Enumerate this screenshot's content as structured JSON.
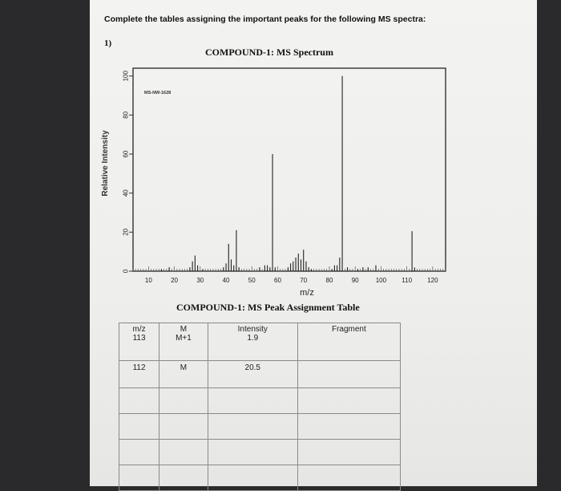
{
  "page": {
    "instruction": "Complete the tables assigning the important peaks for the following MS spectra:",
    "question_number": "1)",
    "spectrum_title": "COMPOUND-1: MS Spectrum",
    "table_title": "COMPOUND-1: MS Peak Assignment Table"
  },
  "chart_data": {
    "type": "bar",
    "title": "COMPOUND-1: MS Spectrum",
    "inner_label": "MS-NW-1628",
    "xlabel": "m/z",
    "ylabel": "Relative Intensity",
    "xlim": [
      4,
      125
    ],
    "ylim": [
      0,
      104
    ],
    "xticks": [
      10,
      20,
      30,
      40,
      50,
      60,
      70,
      80,
      90,
      100,
      110,
      120
    ],
    "yticks": [
      0,
      20,
      40,
      60,
      80,
      100
    ],
    "grid": false,
    "x": [
      15,
      18,
      26,
      27,
      28,
      29,
      31,
      39,
      40,
      41,
      42,
      43,
      44,
      45,
      53,
      55,
      56,
      57,
      58,
      59,
      64,
      65,
      66,
      67,
      68,
      69,
      70,
      71,
      72,
      73,
      81,
      82,
      83,
      84,
      85,
      87,
      91,
      93,
      95,
      98,
      112,
      113
    ],
    "values": [
      1,
      2,
      2,
      5,
      8,
      3,
      1,
      2,
      4,
      14,
      6,
      3,
      21,
      2,
      2,
      3,
      3,
      2,
      60,
      2,
      2,
      4,
      5,
      7,
      9,
      6,
      11,
      5,
      2,
      1,
      1,
      3,
      3,
      7,
      100,
      2,
      1,
      2,
      2,
      3,
      20.5,
      1.9
    ]
  },
  "table": {
    "headers": [
      {
        "line1": "m/z",
        "line2": "113"
      },
      {
        "line1": "M",
        "line2": "M+1"
      },
      {
        "line1": "Intensity",
        "line2": "1.9"
      },
      {
        "line1": "Fragment",
        "line2": ""
      }
    ],
    "rows": [
      [
        "112",
        "M",
        "20.5",
        ""
      ],
      [
        "",
        "",
        "",
        ""
      ],
      [
        "",
        "",
        "",
        ""
      ],
      [
        "",
        "",
        "",
        ""
      ],
      [
        "",
        "",
        "",
        ""
      ]
    ]
  }
}
